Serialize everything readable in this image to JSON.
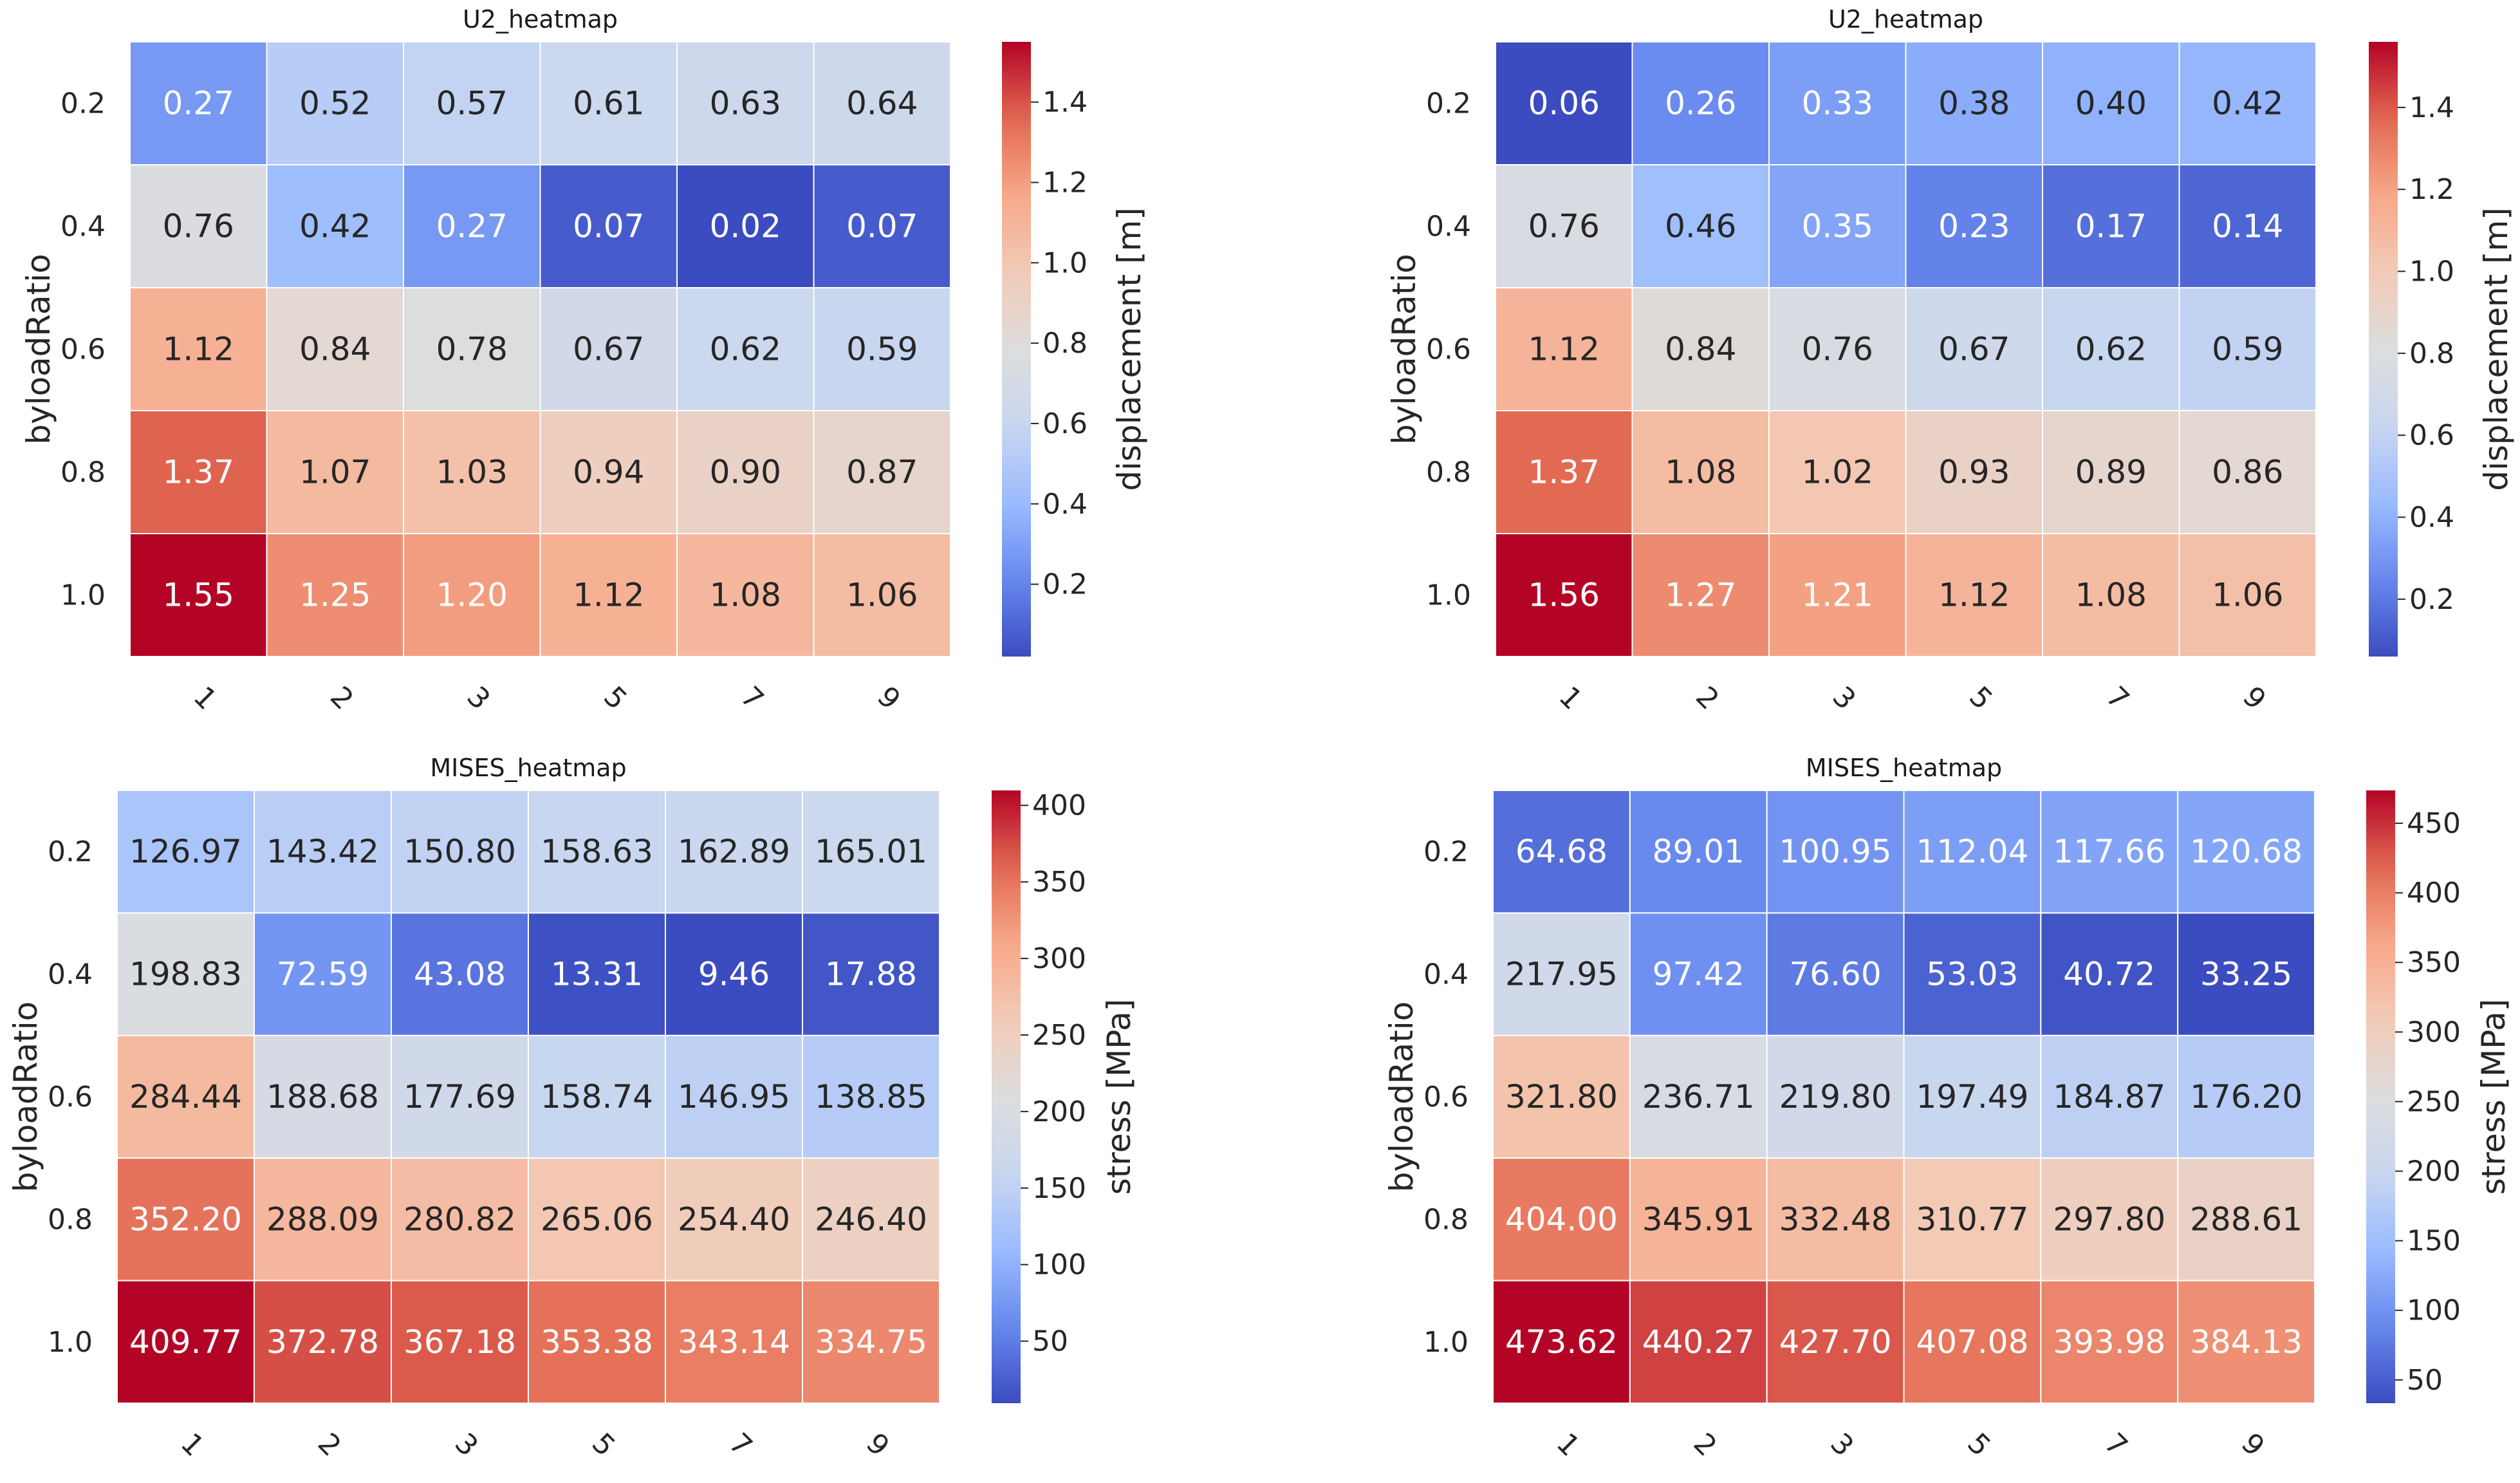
{
  "colormap": {
    "name": "coolwarm",
    "stops": [
      "#3b4cc0",
      "#6788ee",
      "#9abbff",
      "#c9d7f0",
      "#dddddd",
      "#f2cbb7",
      "#f7a889",
      "#e26952",
      "#b40426"
    ]
  },
  "chart_data": [
    {
      "type": "heatmap",
      "title": "U2_heatmap",
      "xlabel": "",
      "ylabel": "byloadRatio",
      "x_categories": [
        "1",
        "2",
        "3",
        "5",
        "7",
        "9"
      ],
      "y_categories": [
        "0.2",
        "0.4",
        "0.6",
        "0.8",
        "1.0"
      ],
      "values": [
        [
          0.27,
          0.52,
          0.57,
          0.61,
          0.63,
          0.64
        ],
        [
          0.76,
          0.42,
          0.27,
          0.07,
          0.02,
          0.07
        ],
        [
          1.12,
          0.84,
          0.78,
          0.67,
          0.62,
          0.59
        ],
        [
          1.37,
          1.07,
          1.03,
          0.94,
          0.9,
          0.87
        ],
        [
          1.55,
          1.25,
          1.2,
          1.12,
          1.08,
          1.06
        ]
      ],
      "value_labels": [
        [
          "0.27",
          "0.52",
          "0.57",
          "0.61",
          "0.63",
          "0.64"
        ],
        [
          "0.76",
          "0.42",
          "0.27",
          "0.07",
          "0.02",
          "0.07"
        ],
        [
          "1.12",
          "0.84",
          "0.78",
          "0.67",
          "0.62",
          "0.59"
        ],
        [
          "1.37",
          "1.07",
          "1.03",
          "0.94",
          "0.90",
          "0.87"
        ],
        [
          "1.55",
          "1.25",
          "1.20",
          "1.12",
          "1.08",
          "1.06"
        ]
      ],
      "colorbar": {
        "label": "displacement [m]",
        "range": [
          0.02,
          1.55
        ],
        "ticks": [
          0.2,
          0.4,
          0.6,
          0.8,
          1.0,
          1.2,
          1.4
        ],
        "tick_labels": [
          "0.2",
          "0.4",
          "0.6",
          "0.8",
          "1.0",
          "1.2",
          "1.4"
        ]
      }
    },
    {
      "type": "heatmap",
      "title": "U2_heatmap",
      "xlabel": "",
      "ylabel": "byloadRatio",
      "x_categories": [
        "1",
        "2",
        "3",
        "5",
        "7",
        "9"
      ],
      "y_categories": [
        "0.2",
        "0.4",
        "0.6",
        "0.8",
        "1.0"
      ],
      "values": [
        [
          0.06,
          0.26,
          0.33,
          0.38,
          0.4,
          0.42
        ],
        [
          0.76,
          0.46,
          0.35,
          0.23,
          0.17,
          0.14
        ],
        [
          1.12,
          0.84,
          0.76,
          0.67,
          0.62,
          0.59
        ],
        [
          1.37,
          1.08,
          1.02,
          0.93,
          0.89,
          0.86
        ],
        [
          1.56,
          1.27,
          1.21,
          1.12,
          1.08,
          1.06
        ]
      ],
      "value_labels": [
        [
          "0.06",
          "0.26",
          "0.33",
          "0.38",
          "0.40",
          "0.42"
        ],
        [
          "0.76",
          "0.46",
          "0.35",
          "0.23",
          "0.17",
          "0.14"
        ],
        [
          "1.12",
          "0.84",
          "0.76",
          "0.67",
          "0.62",
          "0.59"
        ],
        [
          "1.37",
          "1.08",
          "1.02",
          "0.93",
          "0.89",
          "0.86"
        ],
        [
          "1.56",
          "1.27",
          "1.21",
          "1.12",
          "1.08",
          "1.06"
        ]
      ],
      "colorbar": {
        "label": "displacement [m]",
        "range": [
          0.06,
          1.56
        ],
        "ticks": [
          0.2,
          0.4,
          0.6,
          0.8,
          1.0,
          1.2,
          1.4
        ],
        "tick_labels": [
          "0.2",
          "0.4",
          "0.6",
          "0.8",
          "1.0",
          "1.2",
          "1.4"
        ]
      }
    },
    {
      "type": "heatmap",
      "title": "MISES_heatmap",
      "xlabel": "",
      "ylabel": "byloadRatio",
      "x_categories": [
        "1",
        "2",
        "3",
        "5",
        "7",
        "9"
      ],
      "y_categories": [
        "0.2",
        "0.4",
        "0.6",
        "0.8",
        "1.0"
      ],
      "values": [
        [
          126.97,
          143.42,
          150.8,
          158.63,
          162.89,
          165.01
        ],
        [
          198.83,
          72.59,
          43.08,
          13.31,
          9.46,
          17.88
        ],
        [
          284.44,
          188.68,
          177.69,
          158.74,
          146.95,
          138.85
        ],
        [
          352.2,
          288.09,
          280.82,
          265.06,
          254.4,
          246.4
        ],
        [
          409.77,
          372.78,
          367.18,
          353.38,
          343.14,
          334.75
        ]
      ],
      "value_labels": [
        [
          "126.97",
          "143.42",
          "150.80",
          "158.63",
          "162.89",
          "165.01"
        ],
        [
          "198.83",
          "72.59",
          "43.08",
          "13.31",
          "9.46",
          "17.88"
        ],
        [
          "284.44",
          "188.68",
          "177.69",
          "158.74",
          "146.95",
          "138.85"
        ],
        [
          "352.20",
          "288.09",
          "280.82",
          "265.06",
          "254.40",
          "246.40"
        ],
        [
          "409.77",
          "372.78",
          "367.18",
          "353.38",
          "343.14",
          "334.75"
        ]
      ],
      "colorbar": {
        "label": "stress [MPa]",
        "range": [
          9.46,
          409.77
        ],
        "ticks": [
          50,
          100,
          150,
          200,
          250,
          300,
          350,
          400
        ],
        "tick_labels": [
          "50",
          "100",
          "150",
          "200",
          "250",
          "300",
          "350",
          "400"
        ]
      }
    },
    {
      "type": "heatmap",
      "title": "MISES_heatmap",
      "xlabel": "",
      "ylabel": "byloadRatio",
      "x_categories": [
        "1",
        "2",
        "3",
        "5",
        "7",
        "9"
      ],
      "y_categories": [
        "0.2",
        "0.4",
        "0.6",
        "0.8",
        "1.0"
      ],
      "values": [
        [
          64.68,
          89.01,
          100.95,
          112.04,
          117.66,
          120.68
        ],
        [
          217.95,
          97.42,
          76.6,
          53.03,
          40.72,
          33.25
        ],
        [
          321.8,
          236.71,
          219.8,
          197.49,
          184.87,
          176.2
        ],
        [
          404.0,
          345.91,
          332.48,
          310.77,
          297.8,
          288.61
        ],
        [
          473.62,
          440.27,
          427.7,
          407.08,
          393.98,
          384.13
        ]
      ],
      "value_labels": [
        [
          "64.68",
          "89.01",
          "100.95",
          "112.04",
          "117.66",
          "120.68"
        ],
        [
          "217.95",
          "97.42",
          "76.60",
          "53.03",
          "40.72",
          "33.25"
        ],
        [
          "321.80",
          "236.71",
          "219.80",
          "197.49",
          "184.87",
          "176.20"
        ],
        [
          "404.00",
          "345.91",
          "332.48",
          "310.77",
          "297.80",
          "288.61"
        ],
        [
          "473.62",
          "440.27",
          "427.70",
          "407.08",
          "393.98",
          "384.13"
        ]
      ],
      "colorbar": {
        "label": "stress [MPa]",
        "range": [
          33.25,
          473.62
        ],
        "ticks": [
          50,
          100,
          150,
          200,
          250,
          300,
          350,
          400,
          450
        ],
        "tick_labels": [
          "50",
          "100",
          "150",
          "200",
          "250",
          "300",
          "350",
          "400",
          "450"
        ]
      }
    }
  ]
}
